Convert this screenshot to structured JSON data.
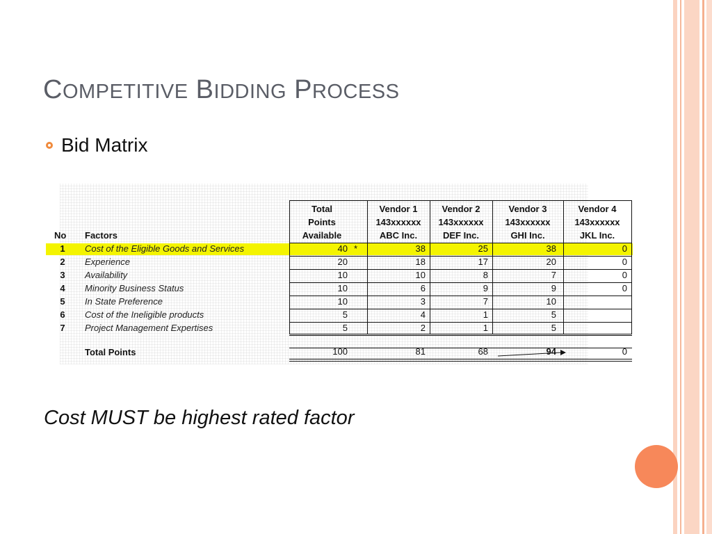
{
  "slide": {
    "title": "Competitive Bidding Process",
    "bullet": "Bid Matrix",
    "note": "Cost MUST be highest rated factor",
    "accent": "#f08a3c"
  },
  "matrix": {
    "col_no": "No",
    "col_factors": "Factors",
    "col_total": [
      "Total",
      "Points",
      "Available"
    ],
    "vendors": [
      {
        "lines": [
          "Vendor 1",
          "143xxxxxx",
          "ABC Inc."
        ]
      },
      {
        "lines": [
          "Vendor 2",
          "143xxxxxx",
          "DEF Inc."
        ]
      },
      {
        "lines": [
          "Vendor 3",
          "143xxxxxx",
          "GHI Inc."
        ]
      },
      {
        "lines": [
          "Vendor 4",
          "143xxxxxx",
          "JKL Inc."
        ]
      }
    ],
    "rows": [
      {
        "no": "1",
        "factor": "Cost of the Eligible Goods and Services",
        "total": "40",
        "mark": "*",
        "v": [
          "38",
          "25",
          "38",
          "0"
        ]
      },
      {
        "no": "2",
        "factor": "Experience",
        "total": "20",
        "mark": "",
        "v": [
          "18",
          "17",
          "20",
          "0"
        ]
      },
      {
        "no": "3",
        "factor": "Availability",
        "total": "10",
        "mark": "",
        "v": [
          "10",
          "8",
          "7",
          "0"
        ]
      },
      {
        "no": "4",
        "factor": "Minority Business Status",
        "total": "10",
        "mark": "",
        "v": [
          "6",
          "9",
          "9",
          "0"
        ]
      },
      {
        "no": "5",
        "factor": "In State Preference",
        "total": "10",
        "mark": "",
        "v": [
          "3",
          "7",
          "10",
          ""
        ]
      },
      {
        "no": "6",
        "factor": "Cost of the Ineligible products",
        "total": "5",
        "mark": "",
        "v": [
          "4",
          "1",
          "5",
          ""
        ]
      },
      {
        "no": "7",
        "factor": "Project Management Expertises",
        "total": "5",
        "mark": "",
        "v": [
          "2",
          "1",
          "5",
          ""
        ]
      }
    ],
    "totals": {
      "label": "Total Points",
      "total": "100",
      "v": [
        "81",
        "68",
        "94",
        "0"
      ]
    }
  }
}
